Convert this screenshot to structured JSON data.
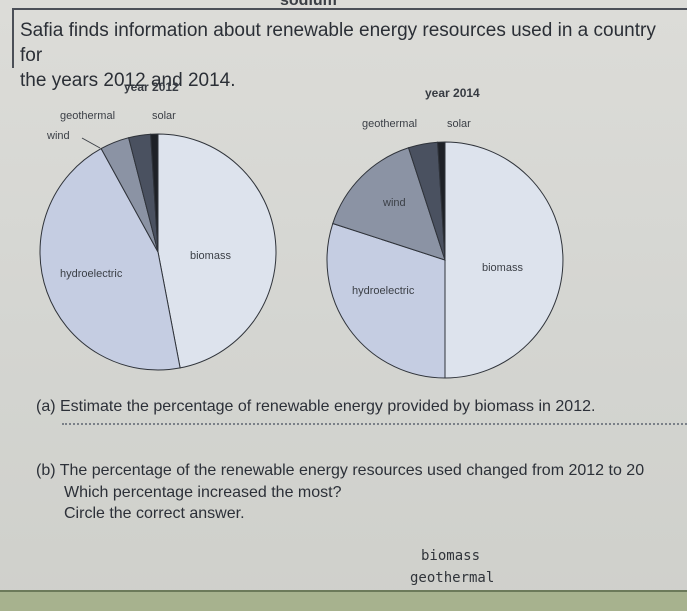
{
  "header": {
    "cut_word": "sodium",
    "intro_line1": "Safia finds information about renewable energy resources used in a country for",
    "intro_line2": "the years 2012 and 2014."
  },
  "colors": {
    "biomass": "#dde3ed",
    "hydroelectric": "#c5cde2",
    "wind": "#8b93a4",
    "geothermal": "#4a5160",
    "solar": "#1e2127",
    "outline": "#2f333a"
  },
  "chart_data": [
    {
      "type": "pie",
      "title": "year 2012",
      "slices": [
        {
          "label": "biomass",
          "value": 47
        },
        {
          "label": "hydroelectric",
          "value": 45
        },
        {
          "label": "wind",
          "value": 4
        },
        {
          "label": "geothermal",
          "value": 3
        },
        {
          "label": "solar",
          "value": 1
        }
      ]
    },
    {
      "type": "pie",
      "title": "year 2014",
      "slices": [
        {
          "label": "biomass",
          "value": 50
        },
        {
          "label": "hydroelectric",
          "value": 30
        },
        {
          "label": "wind",
          "value": 15
        },
        {
          "label": "geothermal",
          "value": 4
        },
        {
          "label": "solar",
          "value": 1
        }
      ]
    }
  ],
  "questions": {
    "a": "(a) Estimate the percentage of renewable energy provided by biomass in 2012.",
    "b_line1": "(b) The percentage of the renewable energy resources used changed from 2012 to 20",
    "b_line2": "Which percentage increased the most?",
    "b_line3": "Circle the correct answer."
  },
  "answer_options": [
    "biomass",
    "geothermal"
  ]
}
